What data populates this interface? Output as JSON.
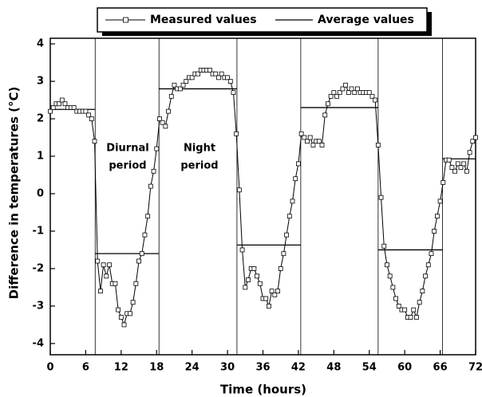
{
  "chart_data": {
    "type": "line",
    "xlabel": "Time (hours)",
    "ylabel": "Difference in temperatures (°C)",
    "xlim": [
      0,
      72
    ],
    "ylim": [
      -4.3,
      4.15
    ],
    "xticks": [
      0,
      6,
      12,
      18,
      24,
      30,
      36,
      42,
      48,
      54,
      60,
      66,
      72
    ],
    "yticks": [
      -4,
      -3,
      -2,
      -1,
      0,
      1,
      2,
      3,
      4
    ],
    "annotations": [
      {
        "lines": [
          "Diurnal",
          "period"
        ]
      },
      {
        "lines": [
          "Night",
          "period"
        ]
      }
    ],
    "series": [
      {
        "name": "Measured values",
        "color": "#000000",
        "x": [
          0,
          0.5,
          1,
          1.5,
          2,
          2.5,
          3,
          3.5,
          4,
          4.5,
          5,
          5.5,
          6,
          6.5,
          7,
          7.5,
          8,
          8.5,
          9,
          9.5,
          10,
          10.5,
          11,
          11.5,
          12,
          12.5,
          13,
          13.5,
          14,
          14.5,
          15,
          15.5,
          16,
          16.5,
          17,
          17.5,
          18,
          18.5,
          19,
          19.5,
          20,
          20.5,
          21,
          21.5,
          22,
          22.5,
          23,
          23.5,
          24,
          24.5,
          25,
          25.5,
          26,
          26.5,
          27,
          27.5,
          28,
          28.5,
          29,
          29.5,
          30,
          30.5,
          31,
          31.5,
          32,
          32.5,
          33,
          33.5,
          34,
          34.5,
          35,
          35.5,
          36,
          36.5,
          37,
          37.5,
          38,
          38.5,
          39,
          39.5,
          40,
          40.5,
          41,
          41.5,
          42,
          42.5,
          43,
          43.5,
          44,
          44.5,
          45,
          45.5,
          46,
          46.5,
          47,
          47.5,
          48,
          48.5,
          49,
          49.5,
          50,
          50.5,
          51,
          51.5,
          52,
          52.5,
          53,
          53.5,
          54,
          54.5,
          55,
          55.5,
          56,
          56.5,
          57,
          57.5,
          58,
          58.5,
          59,
          59.5,
          60,
          60.5,
          61,
          61.5,
          62,
          62.5,
          63,
          63.5,
          64,
          64.5,
          65,
          65.5,
          66,
          66.5,
          67,
          67.5,
          68,
          68.5,
          69,
          69.5,
          70,
          70.5,
          71,
          71.5,
          72
        ],
        "values": [
          2.2,
          2.3,
          2.4,
          2.4,
          2.5,
          2.4,
          2.3,
          2.3,
          2.3,
          2.2,
          2.2,
          2.2,
          2.2,
          2.1,
          2.0,
          1.4,
          -1.8,
          -2.6,
          -1.9,
          -2.2,
          -1.9,
          -2.4,
          -2.4,
          -3.1,
          -3.3,
          -3.5,
          -3.2,
          -3.2,
          -2.9,
          -2.4,
          -1.8,
          -1.6,
          -1.1,
          -0.6,
          0.2,
          0.6,
          1.2,
          2.0,
          1.9,
          1.8,
          2.2,
          2.6,
          2.9,
          2.8,
          2.8,
          2.9,
          3.0,
          3.1,
          3.1,
          3.2,
          3.2,
          3.3,
          3.3,
          3.3,
          3.3,
          3.2,
          3.2,
          3.1,
          3.2,
          3.1,
          3.1,
          3.0,
          2.7,
          1.6,
          0.1,
          -1.5,
          -2.5,
          -2.3,
          -2.0,
          -2.0,
          -2.2,
          -2.4,
          -2.8,
          -2.8,
          -3.0,
          -2.6,
          -2.7,
          -2.6,
          -2.0,
          -1.6,
          -1.1,
          -0.6,
          -0.2,
          0.4,
          0.8,
          1.6,
          1.5,
          1.4,
          1.5,
          1.3,
          1.4,
          1.4,
          1.3,
          2.1,
          2.4,
          2.6,
          2.7,
          2.6,
          2.7,
          2.8,
          2.9,
          2.7,
          2.8,
          2.7,
          2.8,
          2.7,
          2.7,
          2.7,
          2.7,
          2.6,
          2.5,
          1.3,
          -0.1,
          -1.4,
          -1.9,
          -2.2,
          -2.5,
          -2.8,
          -3.0,
          -3.1,
          -3.1,
          -3.3,
          -3.3,
          -3.1,
          -3.3,
          -2.9,
          -2.6,
          -2.2,
          -1.9,
          -1.6,
          -1.0,
          -0.6,
          -0.2,
          0.3,
          0.9,
          0.9,
          0.7,
          0.6,
          0.8,
          0.7,
          0.8,
          0.6,
          1.1,
          1.4,
          1.5
        ]
      },
      {
        "name": "Average values",
        "color": "#000000",
        "x_start": [
          0,
          7.6,
          18.4,
          31.6,
          42.4,
          55.5,
          66.4
        ],
        "x_end": [
          7.6,
          18.4,
          31.6,
          42.4,
          55.5,
          66.4,
          72
        ],
        "values": [
          2.25,
          -1.6,
          2.8,
          -1.37,
          2.3,
          -1.5,
          0.93
        ]
      }
    ]
  }
}
